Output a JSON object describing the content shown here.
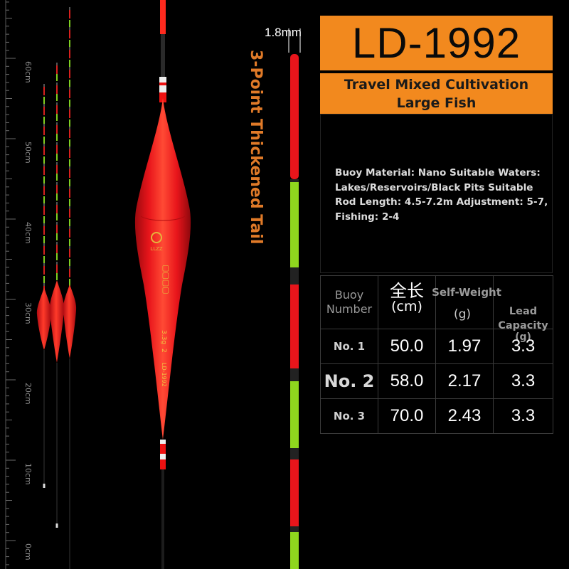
{
  "ruler": {
    "labels": [
      "60cm",
      "50cm",
      "40cm",
      "30cm",
      "20cm",
      "10cm",
      "0cm"
    ]
  },
  "float_tip": {
    "width_label": "1.8mm",
    "tail_label": "3-Point Thickened Tail"
  },
  "float_body": {
    "brand_text": "LLZZ",
    "model_text": "LD-1992",
    "number_text": "2",
    "capacity_text": "3.3g"
  },
  "panel": {
    "model": "LD-1992",
    "subtitle": "Travel Mixed Cultivation\nLarge Fish",
    "description": "Buoy Material: Nano Suitable Waters: Lakes/Reservoirs/Black Pits Suitable Rod Length: 4.5-7.2m Adjustment: 5-7, Fishing: 2-4"
  },
  "table": {
    "headers": {
      "buoy_number": "Buoy\nNumber",
      "length_cn": "全长",
      "length_unit": "(cm)",
      "self_weight": "Self-Weight",
      "self_weight_unit": "(g)",
      "lead_capacity": "Lead\nCapacity",
      "lead_unit": "(g)"
    },
    "rows": [
      {
        "name": "No. 1",
        "length": "50.0",
        "weight": "1.97",
        "lead": "3.3"
      },
      {
        "name": "No. 2",
        "length": "58.0",
        "weight": "2.17",
        "lead": "3.3"
      },
      {
        "name": "No. 3",
        "length": "70.0",
        "weight": "2.43",
        "lead": "3.3"
      }
    ]
  },
  "colors": {
    "background": "#000000",
    "accent": "#f2891e",
    "float_red": "#e8151b",
    "float_green": "#8fd61e",
    "tail_label": "#e07a28"
  }
}
